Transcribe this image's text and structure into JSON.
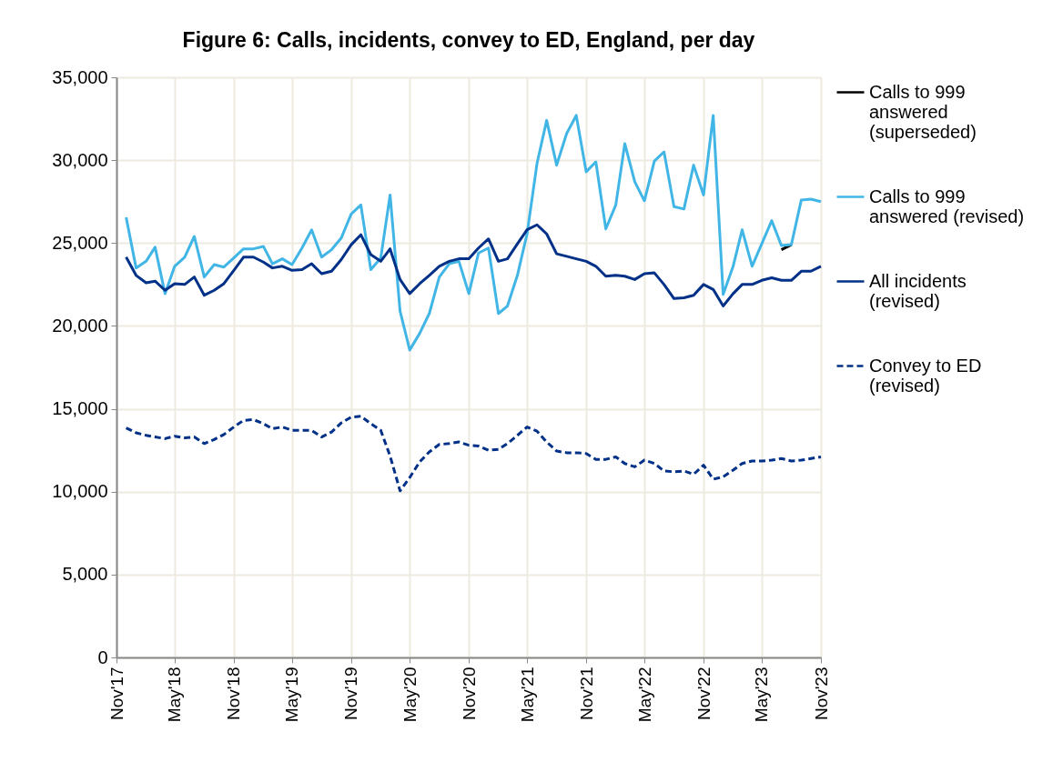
{
  "chart_data": {
    "type": "line",
    "title": "Figure 6: Calls, incidents, convey to ED, England, per day",
    "x": [
      "2017-12",
      "2018-01",
      "2018-02",
      "2018-03",
      "2018-04",
      "2018-05",
      "2018-06",
      "2018-07",
      "2018-08",
      "2018-09",
      "2018-10",
      "2018-11",
      "2018-12",
      "2019-01",
      "2019-02",
      "2019-03",
      "2019-04",
      "2019-05",
      "2019-06",
      "2019-07",
      "2019-08",
      "2019-09",
      "2019-10",
      "2019-11",
      "2019-12",
      "2020-01",
      "2020-02",
      "2020-03",
      "2020-04",
      "2020-05",
      "2020-06",
      "2020-07",
      "2020-08",
      "2020-09",
      "2020-10",
      "2020-11",
      "2020-12",
      "2021-01",
      "2021-02",
      "2021-03",
      "2021-04",
      "2021-05",
      "2021-06",
      "2021-07",
      "2021-08",
      "2021-09",
      "2021-10",
      "2021-11",
      "2021-12",
      "2022-01",
      "2022-02",
      "2022-03",
      "2022-04",
      "2022-05",
      "2022-06",
      "2022-07",
      "2022-08",
      "2022-09",
      "2022-10",
      "2022-11",
      "2022-12",
      "2023-01",
      "2023-02",
      "2023-03",
      "2023-04",
      "2023-05",
      "2023-06",
      "2023-07",
      "2023-08",
      "2023-09",
      "2023-10",
      "2023-11"
    ],
    "series": [
      {
        "name": "Calls to 999 answered (superseded)",
        "color": "#000000",
        "line_style": "solid",
        "values": [
          null,
          null,
          null,
          null,
          null,
          null,
          null,
          null,
          null,
          null,
          null,
          null,
          null,
          null,
          null,
          null,
          null,
          null,
          null,
          null,
          null,
          null,
          null,
          null,
          null,
          null,
          null,
          null,
          null,
          null,
          null,
          null,
          null,
          null,
          null,
          null,
          null,
          null,
          null,
          null,
          null,
          null,
          null,
          null,
          null,
          null,
          null,
          null,
          null,
          null,
          null,
          null,
          null,
          null,
          null,
          null,
          null,
          null,
          null,
          null,
          null,
          null,
          null,
          null,
          null,
          null,
          null,
          24600,
          24900,
          null,
          null,
          null
        ]
      },
      {
        "name": "Calls to 999 answered (revised)",
        "color": "#41b6e6",
        "line_style": "solid",
        "values": [
          26550,
          23500,
          23900,
          24750,
          21950,
          23600,
          24150,
          25400,
          22950,
          23700,
          23550,
          24100,
          24650,
          24650,
          24800,
          23750,
          24050,
          23700,
          24700,
          25800,
          24150,
          24600,
          25300,
          26750,
          27300,
          23400,
          24100,
          27900,
          20900,
          18550,
          19550,
          20750,
          22950,
          23750,
          23900,
          21950,
          24400,
          24700,
          20750,
          21200,
          23050,
          25550,
          29800,
          32400,
          29700,
          31600,
          32700,
          29300,
          29900,
          25850,
          27300,
          31000,
          28700,
          27550,
          29950,
          30500,
          27200,
          27050,
          29700,
          27900,
          32700,
          21900,
          23600,
          25800,
          23600,
          24950,
          26350,
          24850,
          24900,
          27600,
          27650,
          27500
        ]
      },
      {
        "name": "All incidents (revised)",
        "color": "#003087",
        "line_style": "solid",
        "values": [
          24150,
          23050,
          22600,
          22700,
          22150,
          22550,
          22500,
          22950,
          21850,
          22150,
          22550,
          23350,
          24150,
          24150,
          23850,
          23500,
          23600,
          23350,
          23400,
          23750,
          23150,
          23300,
          24000,
          24900,
          25500,
          24300,
          23900,
          24650,
          22800,
          21950,
          22550,
          23050,
          23600,
          23900,
          24050,
          24050,
          24700,
          25250,
          23900,
          24050,
          24950,
          25800,
          26100,
          25550,
          24350,
          24200,
          24050,
          23900,
          23600,
          23000,
          23050,
          23000,
          22800,
          23150,
          23200,
          22500,
          21650,
          21700,
          21850,
          22500,
          22200,
          21200,
          21950,
          22500,
          22500,
          22750,
          22900,
          22750,
          22750,
          23300,
          23300,
          23600
        ]
      },
      {
        "name": "Convey to ED (revised)",
        "color": "#003087",
        "line_style": "dashed",
        "values": [
          13850,
          13550,
          13400,
          13300,
          13200,
          13350,
          13250,
          13300,
          12900,
          13150,
          13450,
          13900,
          14300,
          14350,
          14100,
          13800,
          13900,
          13700,
          13700,
          13700,
          13300,
          13600,
          14150,
          14500,
          14550,
          14100,
          13700,
          12150,
          10050,
          10850,
          11800,
          12400,
          12850,
          12900,
          13000,
          12800,
          12750,
          12500,
          12550,
          12900,
          13400,
          13900,
          13650,
          13000,
          12450,
          12350,
          12350,
          12300,
          11950,
          11950,
          12100,
          11700,
          11500,
          11900,
          11700,
          11250,
          11200,
          11250,
          11050,
          11600,
          10750,
          10900,
          11300,
          11700,
          11850,
          11850,
          11900,
          12000,
          11850,
          11900,
          12000,
          12100
        ]
      }
    ],
    "xlim": [
      "2017-11",
      "2023-11"
    ],
    "xticks": [
      {
        "value": "2017-11",
        "label": "Nov'17"
      },
      {
        "value": "2018-05",
        "label": "May'18"
      },
      {
        "value": "2018-11",
        "label": "Nov'18"
      },
      {
        "value": "2019-05",
        "label": "May'19"
      },
      {
        "value": "2019-11",
        "label": "Nov'19"
      },
      {
        "value": "2020-05",
        "label": "May'20"
      },
      {
        "value": "2020-11",
        "label": "Nov'20"
      },
      {
        "value": "2021-05",
        "label": "May'21"
      },
      {
        "value": "2021-11",
        "label": "Nov'21"
      },
      {
        "value": "2022-05",
        "label": "May'22"
      },
      {
        "value": "2022-11",
        "label": "Nov'22"
      },
      {
        "value": "2023-05",
        "label": "May'23"
      },
      {
        "value": "2023-11",
        "label": "Nov'23"
      }
    ],
    "ylim": [
      0,
      35000
    ],
    "yticks": [
      {
        "value": 0,
        "label": "0"
      },
      {
        "value": 5000,
        "label": "5,000"
      },
      {
        "value": 10000,
        "label": "10,000"
      },
      {
        "value": 15000,
        "label": "15,000"
      },
      {
        "value": 20000,
        "label": "20,000"
      },
      {
        "value": 25000,
        "label": "25,000"
      },
      {
        "value": 30000,
        "label": "30,000"
      },
      {
        "value": 35000,
        "label": "35,000"
      }
    ],
    "grid": true,
    "legend": "right"
  }
}
